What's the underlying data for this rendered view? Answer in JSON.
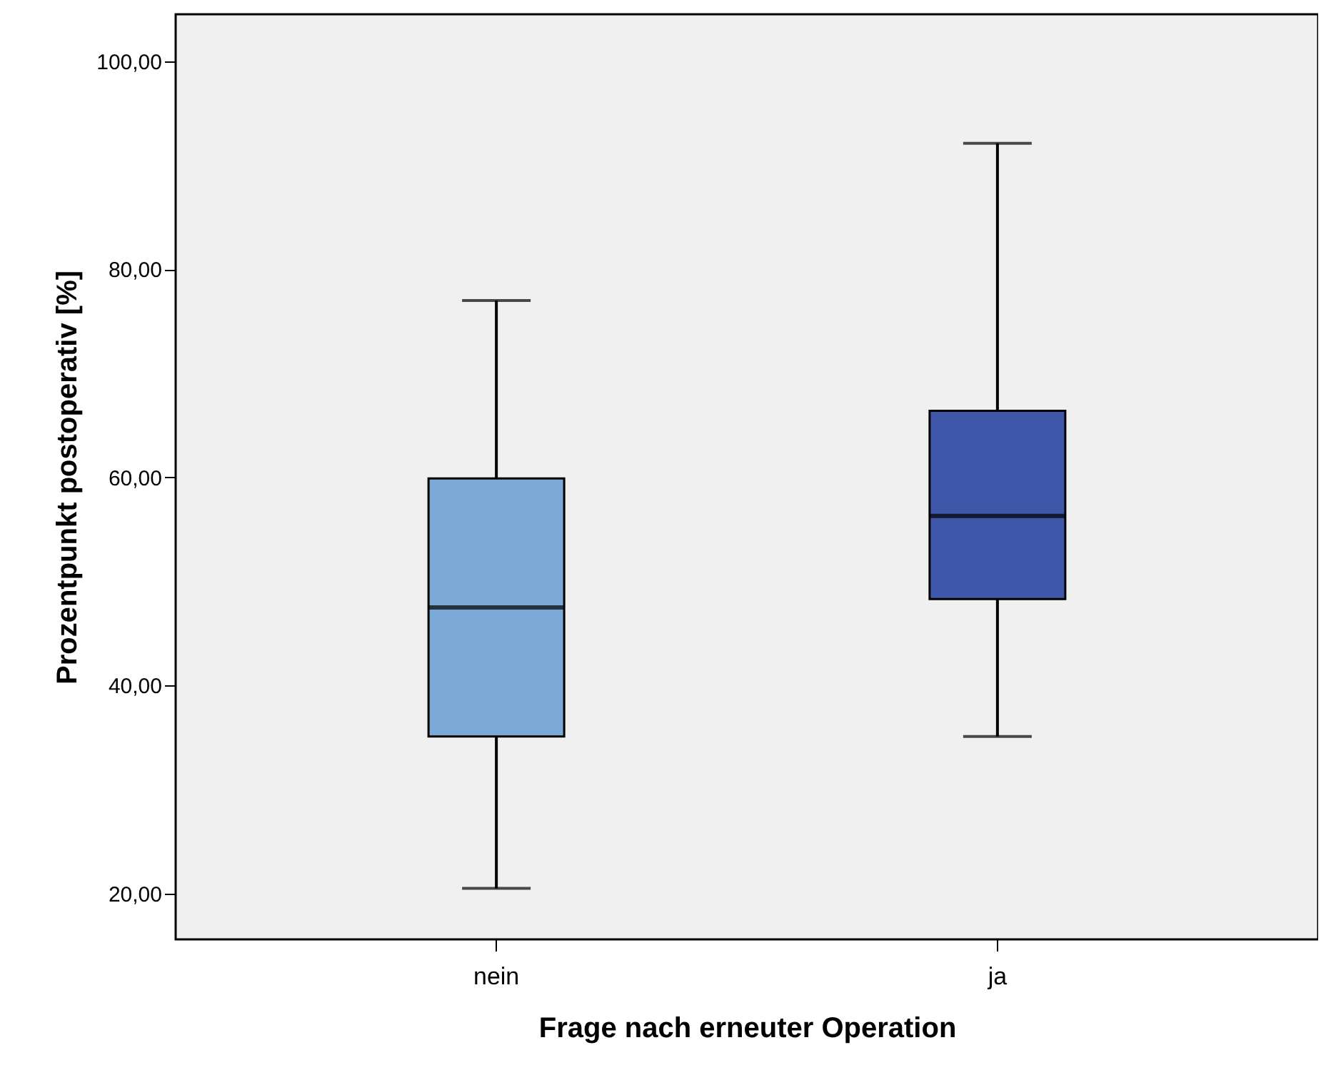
{
  "chart_data": {
    "type": "box",
    "xlabel": "Frage nach erneuter Operation",
    "ylabel": "Prozentpunkt postoperativ [%]",
    "categories": [
      "nein",
      "ja"
    ],
    "colors": [
      "#7ba9d6",
      "#3e57a8"
    ],
    "boxes": [
      {
        "low": 20.5,
        "q1": 35.1,
        "median": 47.5,
        "q3": 59.9,
        "high": 77.0
      },
      {
        "low": 35.1,
        "q1": 48.3,
        "median": 56.3,
        "q3": 66.4,
        "high": 92.1
      }
    ],
    "ylim": [
      15.6,
      104.5
    ],
    "yticks": [
      {
        "value": 20,
        "label": "20,00"
      },
      {
        "value": 40,
        "label": "40,00"
      },
      {
        "value": 60,
        "label": "60,00"
      },
      {
        "value": 80,
        "label": "80,00"
      },
      {
        "value": 100,
        "label": "100,00"
      }
    ],
    "grid": false
  }
}
